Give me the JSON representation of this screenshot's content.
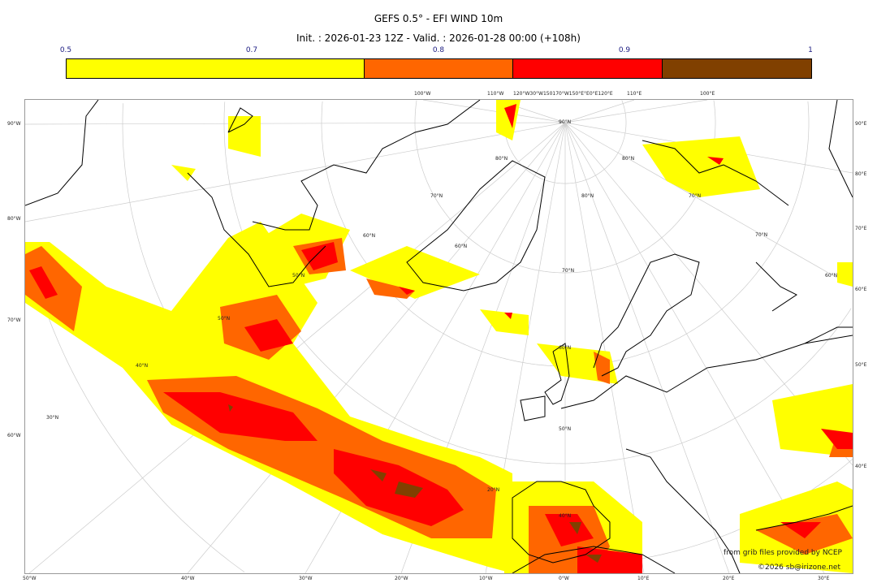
{
  "title": "GEFS 0.5° - EFI WIND 10m",
  "subtitle": "Init. : 2026-01-23 12Z - Valid. : 2026-01-28 00:00 (+108h)",
  "colorbar": {
    "ticks": [
      "0.5",
      "0.7",
      "0.8",
      "0.9",
      "1"
    ],
    "bins": [
      {
        "from": 0.5,
        "to": 0.7,
        "color": "#ffff00"
      },
      {
        "from": 0.7,
        "to": 0.8,
        "color": "#ff6600"
      },
      {
        "from": 0.8,
        "to": 0.9,
        "color": "#ff0000"
      },
      {
        "from": 0.9,
        "to": 1.0,
        "color": "#804000"
      }
    ]
  },
  "map": {
    "left_labels": [
      "90°W",
      "80°W",
      "70°W",
      "60°W"
    ],
    "right_labels": [
      "90°E",
      "80°E",
      "70°E",
      "60°E",
      "50°E",
      "40°E"
    ],
    "bottom_labels": [
      "50°W",
      "40°W",
      "30°W",
      "20°W",
      "10°W",
      "0°W",
      "10°E",
      "20°E",
      "30°E"
    ],
    "top_labels": [
      "100°W",
      "110°W",
      "120°W30°W150170°W150°E°E0°E120°E",
      "110°E",
      "100°E"
    ],
    "lat_labels": [
      "90°N",
      "80°N",
      "80°N",
      "80°N",
      "70°N",
      "70°N",
      "70°N",
      "70°N",
      "60°N",
      "60°N",
      "60°N",
      "60°N",
      "50°N",
      "50°N",
      "50°N",
      "40°N",
      "40°N",
      "30°N",
      "20°N"
    ]
  },
  "credits": {
    "source": "from grib files provided by NCEP",
    "copyright": "©2026 sb@irizone.net"
  }
}
